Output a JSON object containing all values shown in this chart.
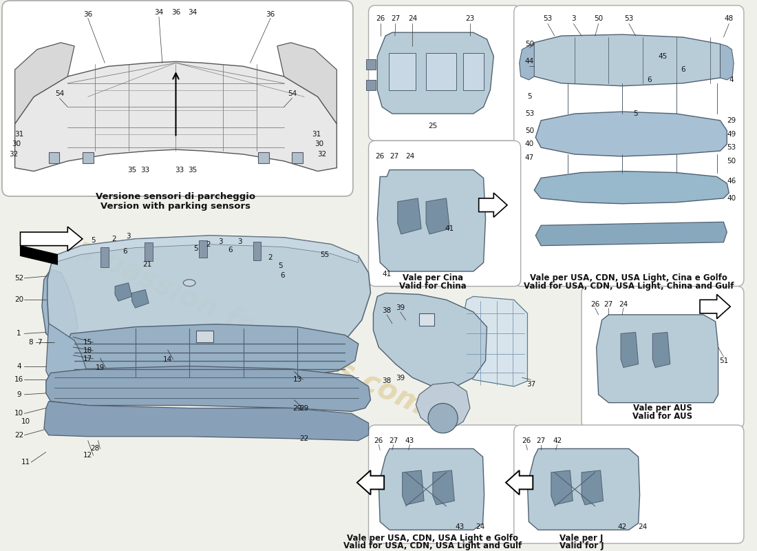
{
  "bg_color": "#f0f0eb",
  "part_fill": "#b8ccd8",
  "part_fill2": "#a0b8cc",
  "part_fill3": "#90a8be",
  "part_stroke": "#506070",
  "box_edge": "#999999",
  "text_color": "#111111",
  "watermark_text": "a passion for parts.com",
  "watermark_color": "#c8a030",
  "parking_label_it": "Versione sensori di parcheggio",
  "parking_label_en": "Version with parking sensors",
  "fig_w": 11.0,
  "fig_h": 8.0
}
